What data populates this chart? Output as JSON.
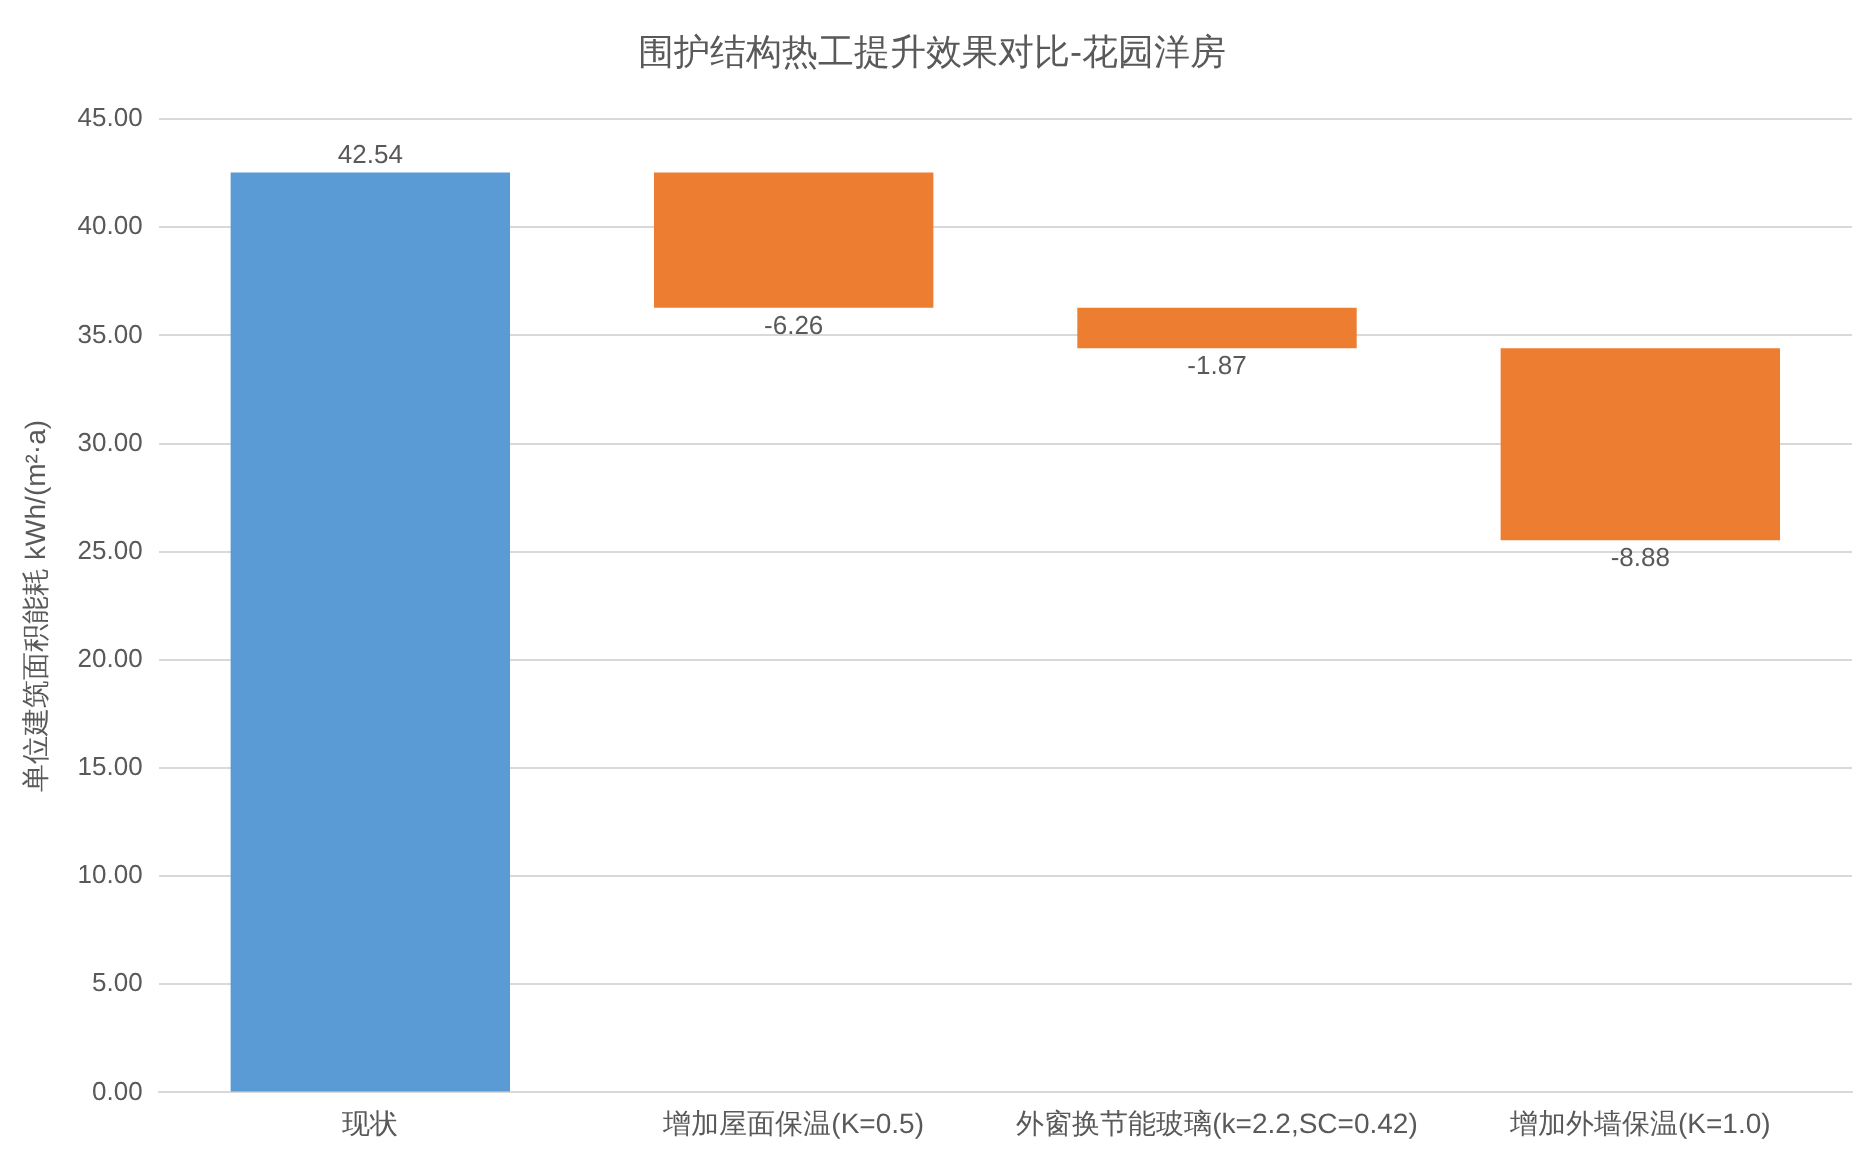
{
  "chart_data": {
    "type": "bar",
    "title": "围护结构热工提升效果对比-花园洋房",
    "ylabel": "单位建筑面积能耗 kWh/(m²·a)",
    "categories": [
      "现状",
      "增加屋面保温(K=0.5)",
      "外窗换节能玻璃(k=2.2,SC=0.42)",
      "增加外墙保温(K=1.0)"
    ],
    "values": [
      42.54,
      -6.26,
      -1.87,
      -8.88
    ],
    "base": [
      0,
      42.54,
      36.28,
      34.41
    ],
    "colors": [
      "#5b9bd5",
      "#ed7d31",
      "#ed7d31",
      "#ed7d31"
    ],
    "ylim": [
      0,
      45
    ],
    "yticks": [
      {
        "value": 0,
        "label": "0.00"
      },
      {
        "value": 5,
        "label": "5.00"
      },
      {
        "value": 10,
        "label": "10.00"
      },
      {
        "value": 15,
        "label": "15.00"
      },
      {
        "value": 20,
        "label": "20.00"
      },
      {
        "value": 25,
        "label": "25.00"
      },
      {
        "value": 30,
        "label": "30.00"
      },
      {
        "value": 35,
        "label": "35.00"
      },
      {
        "value": 40,
        "label": "40.00"
      },
      {
        "value": 45,
        "label": "45.00"
      }
    ],
    "grid": "y",
    "legend": false,
    "data_labels": true
  }
}
